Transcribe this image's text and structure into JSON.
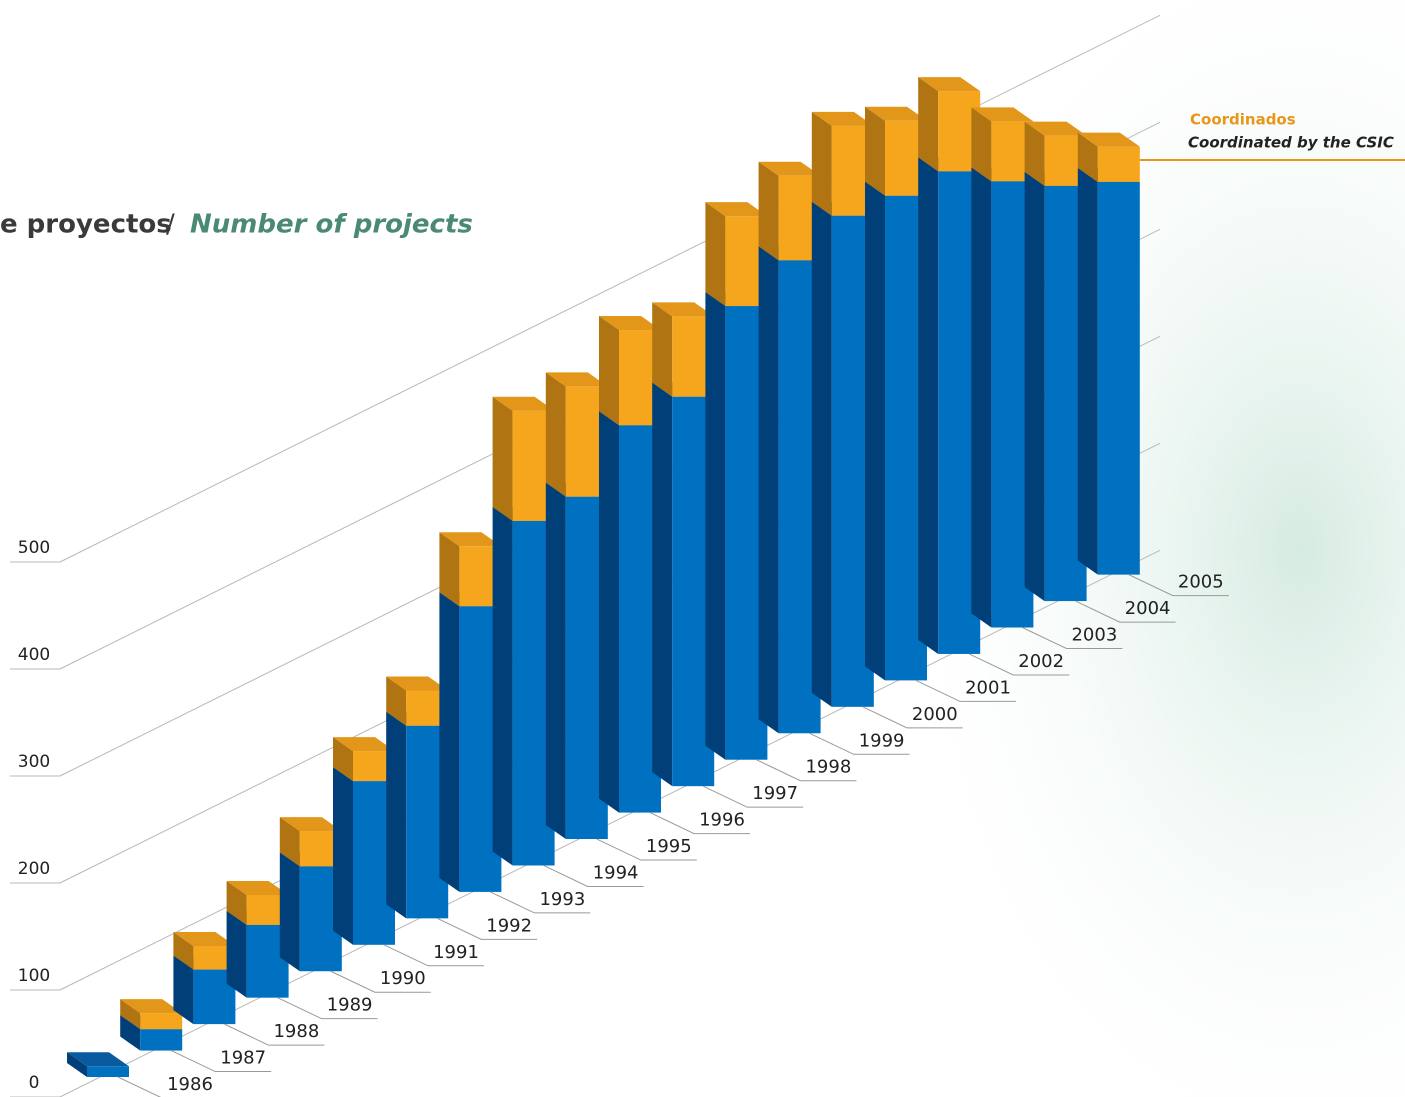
{
  "chart_data": {
    "type": "bar3d-stacked",
    "title": [
      "e proyectos",
      "/",
      "Number of projects"
    ],
    "categories": [
      "1986",
      "1987",
      "1988",
      "1989",
      "1990",
      "1991",
      "1992",
      "1993",
      "1994",
      "1995",
      "1996",
      "1997",
      "1998",
      "1999",
      "2000",
      "2001",
      "2002",
      "2003",
      "2004",
      "2005"
    ],
    "series": [
      {
        "color": "#0070c0",
        "values": [
          10,
          20,
          51,
          68,
          98,
          153,
          180,
          267,
          322,
          320,
          362,
          364,
          424,
          442,
          459,
          453,
          451,
          417,
          388,
          367
        ]
      },
      {
        "name": "Coordinados",
        "name_en": "Coordinated by the CSIC",
        "color": "#f5a61c",
        "values": [
          0,
          15,
          22,
          28,
          33,
          28,
          33,
          56,
          103,
          103,
          89,
          75,
          84,
          79,
          84,
          70,
          75,
          56,
          47,
          33
        ]
      }
    ],
    "ylim": [
      0,
      500
    ],
    "yticks": [
      0,
      100,
      200,
      300,
      400,
      500
    ],
    "grid": true
  }
}
